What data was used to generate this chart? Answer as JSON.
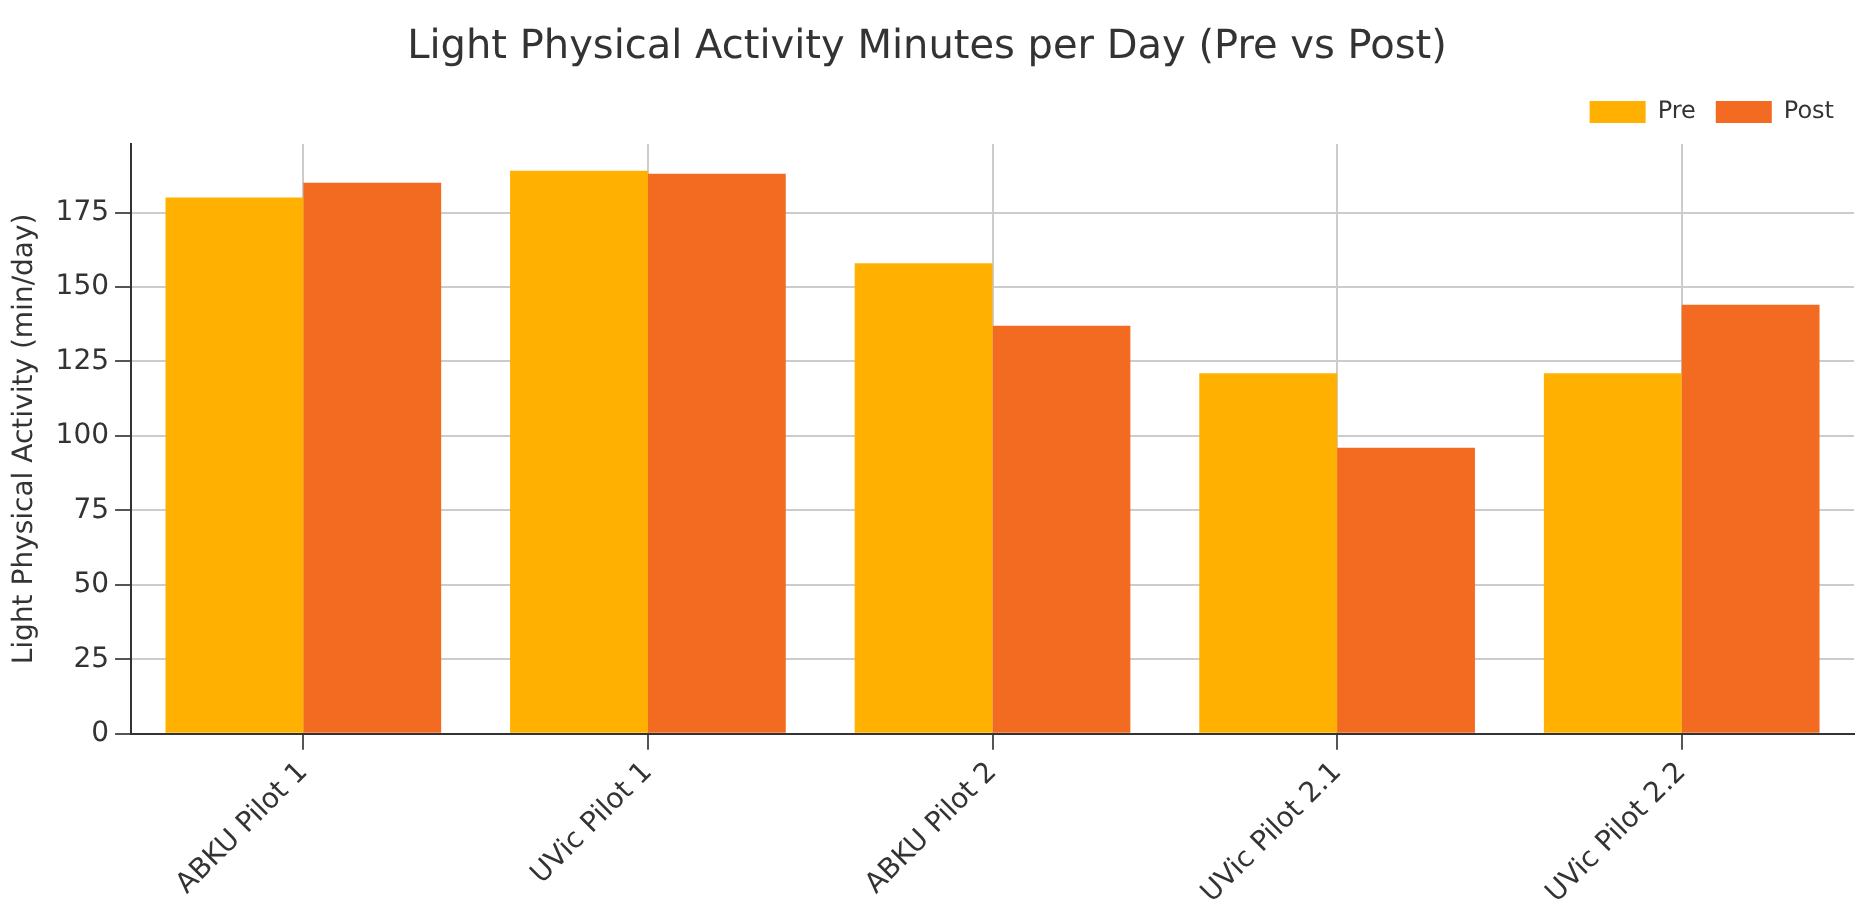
{
  "chart_data": {
    "type": "bar",
    "title": "Light Physical Activity Minutes per Day (Pre vs Post)",
    "ylabel": "Light Physical Activity (min/day)",
    "categories": [
      "ABKU Pilot 1",
      "UVic Pilot 1",
      "ABKU Pilot 2",
      "UVic Pilot 2.1",
      "UVic Pilot 2.2"
    ],
    "series": [
      {
        "name": "Pre",
        "color": "#ffb000",
        "values": [
          180,
          189,
          158,
          121,
          121
        ]
      },
      {
        "name": "Post",
        "color": "#f26b21",
        "values": [
          185,
          188,
          137,
          96,
          144
        ]
      }
    ],
    "ylim": [
      0,
      198
    ],
    "yticks": [
      0,
      25,
      50,
      75,
      100,
      125,
      150,
      175
    ],
    "grid": true,
    "legend": "top right"
  }
}
